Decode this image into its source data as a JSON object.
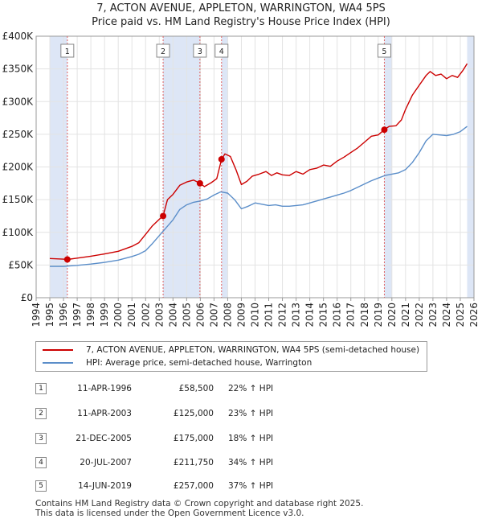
{
  "title_line1": "7, ACTON AVENUE, APPLETON, WARRINGTON, WA4 5PS",
  "title_line2": "Price paid vs. HM Land Registry's House Price Index (HPI)",
  "colors": {
    "property": "#cc0000",
    "hpi": "#5b8ec9",
    "shade": "#dde6f6",
    "marker": "#cc0000"
  },
  "chart_data": {
    "type": "line",
    "xlim": [
      1994,
      2026
    ],
    "ylim": [
      0,
      400000
    ],
    "x_ticks": [
      "1994",
      "1995",
      "1996",
      "1997",
      "1998",
      "1999",
      "2000",
      "2001",
      "2002",
      "2003",
      "2004",
      "2005",
      "2006",
      "2007",
      "2008",
      "2009",
      "2010",
      "2011",
      "2012",
      "2013",
      "2014",
      "2015",
      "2016",
      "2017",
      "2018",
      "2019",
      "2020",
      "2021",
      "2022",
      "2023",
      "2024",
      "2025",
      "2026"
    ],
    "y_ticks": [
      {
        "value": 0,
        "label": "£0"
      },
      {
        "value": 50000,
        "label": "£50K"
      },
      {
        "value": 100000,
        "label": "£100K"
      },
      {
        "value": 150000,
        "label": "£150K"
      },
      {
        "value": 200000,
        "label": "£200K"
      },
      {
        "value": 250000,
        "label": "£250K"
      },
      {
        "value": 300000,
        "label": "£300K"
      },
      {
        "value": 350000,
        "label": "£350K"
      },
      {
        "value": 400000,
        "label": "£400K"
      }
    ],
    "shaded_ranges": [
      [
        1995.0,
        1996.28
      ],
      [
        2003.28,
        2005.97
      ],
      [
        2007.55,
        2008.0
      ],
      [
        2019.45,
        2020.0
      ],
      [
        2025.5,
        2026.0
      ]
    ],
    "series": [
      {
        "name": "7, ACTON AVENUE, APPLETON, WARRINGTON, WA4 5PS (semi-detached house)",
        "color": "#cc0000",
        "x": [
          1995.0,
          1995.5,
          1996.0,
          1996.28,
          1997.0,
          1998.0,
          1999.0,
          2000.0,
          2001.0,
          2001.5,
          2002.0,
          2002.5,
          2003.0,
          2003.28,
          2003.6,
          2004.0,
          2004.5,
          2005.0,
          2005.5,
          2005.97,
          2006.3,
          2006.8,
          2007.2,
          2007.55,
          2007.8,
          2008.2,
          2008.6,
          2009.0,
          2009.4,
          2009.8,
          2010.3,
          2010.8,
          2011.2,
          2011.6,
          2012.0,
          2012.5,
          2013.0,
          2013.5,
          2014.0,
          2014.5,
          2015.0,
          2015.5,
          2016.0,
          2016.5,
          2017.0,
          2017.5,
          2018.0,
          2018.5,
          2019.0,
          2019.45,
          2019.8,
          2020.3,
          2020.7,
          2021.0,
          2021.5,
          2022.0,
          2022.5,
          2022.8,
          2023.2,
          2023.6,
          2024.0,
          2024.4,
          2024.8,
          2025.2,
          2025.5
        ],
        "values": [
          60000,
          59500,
          59000,
          58500,
          60500,
          63500,
          67000,
          71000,
          78500,
          84000,
          97000,
          110000,
          120000,
          125000,
          150000,
          158000,
          172000,
          177000,
          180000,
          175000,
          170000,
          176000,
          182000,
          211750,
          220000,
          216000,
          196000,
          173000,
          178000,
          186000,
          189000,
          193000,
          187000,
          191000,
          188000,
          187000,
          193000,
          189000,
          196000,
          198000,
          203000,
          201000,
          209000,
          215000,
          222000,
          229000,
          238000,
          247000,
          249000,
          257000,
          262000,
          263000,
          272000,
          288000,
          310000,
          325000,
          340000,
          346000,
          340000,
          342000,
          335000,
          340000,
          337000,
          348000,
          358000
        ]
      },
      {
        "name": "HPI: Average price, semi-detached house, Warrington",
        "color": "#5b8ec9",
        "x": [
          1995.0,
          1996.0,
          1997.0,
          1998.0,
          1999.0,
          2000.0,
          2001.0,
          2001.5,
          2002.0,
          2002.5,
          2003.0,
          2003.5,
          2004.0,
          2004.5,
          2005.0,
          2005.5,
          2006.0,
          2006.5,
          2007.0,
          2007.5,
          2008.0,
          2008.5,
          2009.0,
          2009.5,
          2010.0,
          2010.5,
          2011.0,
          2011.5,
          2012.0,
          2012.5,
          2013.0,
          2013.5,
          2014.0,
          2014.5,
          2015.0,
          2015.5,
          2016.0,
          2016.5,
          2017.0,
          2017.5,
          2018.0,
          2018.5,
          2019.0,
          2019.5,
          2020.0,
          2020.5,
          2021.0,
          2021.5,
          2022.0,
          2022.5,
          2023.0,
          2023.5,
          2024.0,
          2024.5,
          2025.0,
          2025.5
        ],
        "values": [
          48000,
          48000,
          49500,
          51500,
          54000,
          57500,
          63000,
          66500,
          72000,
          83000,
          95000,
          107000,
          119000,
          135000,
          142000,
          146000,
          148000,
          151000,
          157000,
          162000,
          160000,
          150000,
          136000,
          140000,
          145000,
          143000,
          141000,
          142000,
          140000,
          140000,
          141000,
          142000,
          145000,
          148000,
          151000,
          154000,
          157000,
          160000,
          164000,
          169000,
          174000,
          179000,
          183000,
          187000,
          189000,
          191000,
          196000,
          207000,
          222000,
          240000,
          250000,
          249000,
          248000,
          250000,
          254000,
          262000
        ]
      }
    ],
    "sales": [
      {
        "label": "1",
        "x": 1996.28,
        "value": 58500
      },
      {
        "label": "2",
        "x": 2003.28,
        "value": 125000
      },
      {
        "label": "3",
        "x": 2005.97,
        "value": 175000
      },
      {
        "label": "4",
        "x": 2007.55,
        "value": 211750
      },
      {
        "label": "5",
        "x": 2019.45,
        "value": 257000
      }
    ]
  },
  "legend": {
    "property": "7, ACTON AVENUE, APPLETON, WARRINGTON, WA4 5PS (semi-detached house)",
    "hpi": "HPI: Average price, semi-detached house, Warrington"
  },
  "transactions": [
    {
      "num": "1",
      "date": "11-APR-1996",
      "price": "£58,500",
      "hpi": "22% ↑ HPI"
    },
    {
      "num": "2",
      "date": "11-APR-2003",
      "price": "£125,000",
      "hpi": "23% ↑ HPI"
    },
    {
      "num": "3",
      "date": "21-DEC-2005",
      "price": "£175,000",
      "hpi": "18% ↑ HPI"
    },
    {
      "num": "4",
      "date": "20-JUL-2007",
      "price": "£211,750",
      "hpi": "34% ↑ HPI"
    },
    {
      "num": "5",
      "date": "14-JUN-2019",
      "price": "£257,000",
      "hpi": "37% ↑ HPI"
    }
  ],
  "footer_line1": "Contains HM Land Registry data © Crown copyright and database right 2025.",
  "footer_line2": "This data is licensed under the Open Government Licence v3.0."
}
